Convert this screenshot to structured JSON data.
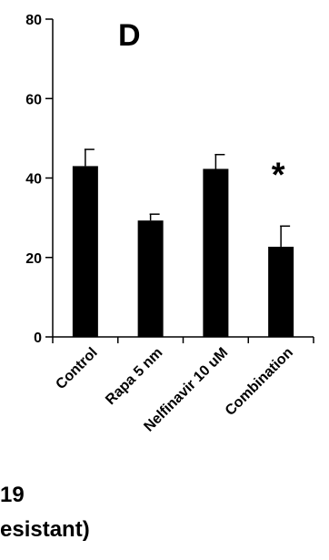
{
  "chart_data": {
    "type": "bar",
    "panel_label": "D",
    "categories": [
      "Control",
      "Rapa 5 nm",
      "Nelfinavir 10 uM",
      "Combination"
    ],
    "values": [
      43,
      29.3,
      42.3,
      22.7
    ],
    "errors": [
      4.2,
      1.6,
      3.6,
      5.2
    ],
    "significance": [
      "",
      "",
      "",
      "*"
    ],
    "ylim": [
      0,
      80
    ],
    "yticks": [
      0,
      20,
      40,
      60,
      80
    ],
    "bar_color": "#000000",
    "title": "",
    "xlabel": "",
    "ylabel": ""
  },
  "caption": {
    "line1": "19",
    "line2": "esistant)"
  }
}
